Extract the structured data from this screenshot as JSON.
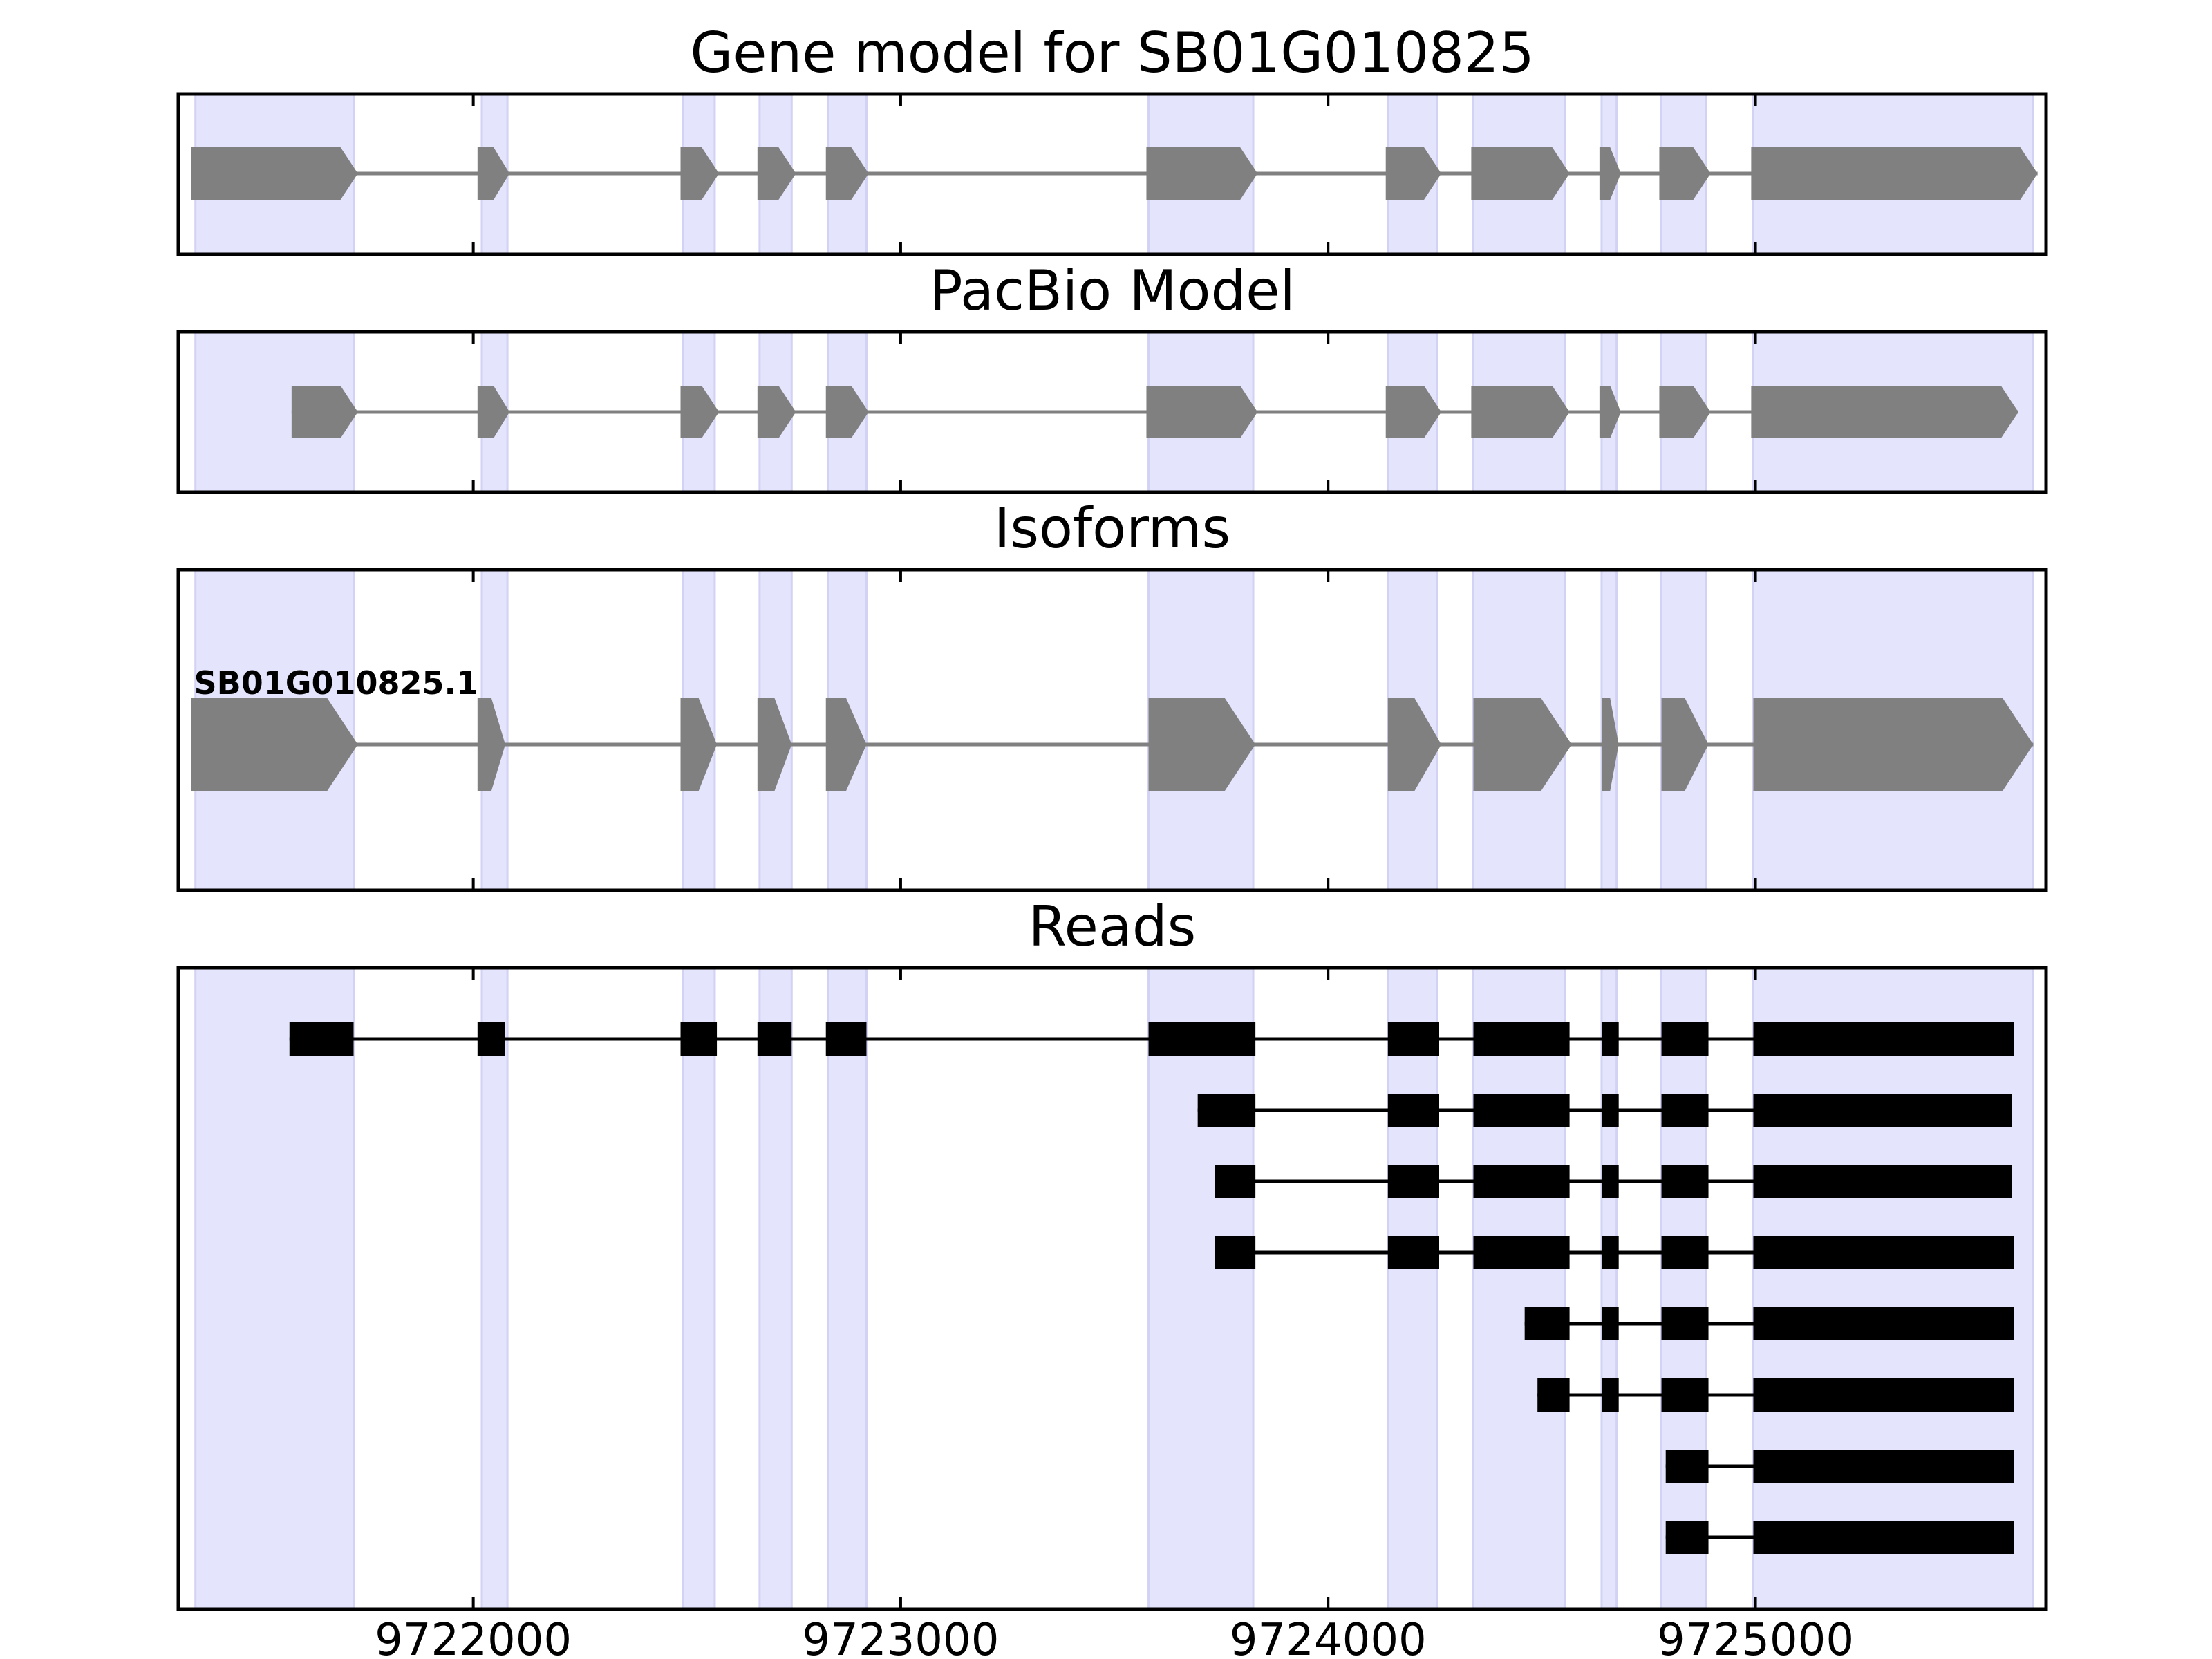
{
  "chart_data": {
    "type": "gene_model",
    "x_axis": {
      "range": [
        9721310,
        9725680
      ],
      "ticks": [
        9722000,
        9723000,
        9724000,
        9725000
      ],
      "tick_labels": [
        "9722000",
        "9723000",
        "9724000",
        "9725000"
      ]
    },
    "exon_regions": [
      [
        9721350,
        9721720
      ],
      [
        9722020,
        9722080
      ],
      [
        9722490,
        9722565
      ],
      [
        9722670,
        9722745
      ],
      [
        9722830,
        9722920
      ],
      [
        9723580,
        9723825
      ],
      [
        9724140,
        9724255
      ],
      [
        9724340,
        9724555
      ],
      [
        9724640,
        9724675
      ],
      [
        9724780,
        9724885
      ],
      [
        9724995,
        9725650
      ]
    ],
    "panels": [
      {
        "title": "Gene model for SB01G010825",
        "style": "arrow",
        "tracks": [
          {
            "label": "",
            "exons": [
              [
                9721340,
                9721730
              ],
              [
                9722010,
                9722085
              ],
              [
                9722485,
                9722575
              ],
              [
                9722665,
                9722755
              ],
              [
                9722825,
                9722925
              ],
              [
                9723575,
                9723835
              ],
              [
                9724135,
                9724265
              ],
              [
                9724335,
                9724565
              ],
              [
                9724635,
                9724685
              ],
              [
                9724775,
                9724895
              ],
              [
                9724990,
                9725660
              ]
            ]
          }
        ]
      },
      {
        "title": "PacBio Model",
        "style": "arrow",
        "tracks": [
          {
            "label": "",
            "exons": [
              [
                9721575,
                9721730
              ],
              [
                9722010,
                9722085
              ],
              [
                9722485,
                9722575
              ],
              [
                9722665,
                9722755
              ],
              [
                9722825,
                9722925
              ],
              [
                9723575,
                9723835
              ],
              [
                9724135,
                9724265
              ],
              [
                9724335,
                9724565
              ],
              [
                9724635,
                9724685
              ],
              [
                9724775,
                9724895
              ],
              [
                9724990,
                9725615
              ]
            ]
          }
        ]
      },
      {
        "title": "Isoforms",
        "style": "arrow",
        "tracks": [
          {
            "label": "SB01G010825.1",
            "exons": [
              [
                9721340,
                9721730
              ],
              [
                9722010,
                9722075
              ],
              [
                9722485,
                9722570
              ],
              [
                9722665,
                9722745
              ],
              [
                9722825,
                9722920
              ],
              [
                9723580,
                9723830
              ],
              [
                9724140,
                9724265
              ],
              [
                9724340,
                9724570
              ],
              [
                9724640,
                9724680
              ],
              [
                9724780,
                9724890
              ],
              [
                9724995,
                9725650
              ]
            ]
          }
        ]
      },
      {
        "title": "Reads",
        "style": "block",
        "tracks": [
          {
            "label": "",
            "exons": [
              [
                9721570,
                9721720
              ],
              [
                9722010,
                9722075
              ],
              [
                9722485,
                9722570
              ],
              [
                9722665,
                9722745
              ],
              [
                9722825,
                9722920
              ],
              [
                9723580,
                9723830
              ],
              [
                9724140,
                9724260
              ],
              [
                9724340,
                9724565
              ],
              [
                9724640,
                9724680
              ],
              [
                9724780,
                9724890
              ],
              [
                9724995,
                9725605
              ]
            ]
          },
          {
            "label": "",
            "exons": [
              [
                9723695,
                9723830
              ],
              [
                9724140,
                9724260
              ],
              [
                9724340,
                9724565
              ],
              [
                9724640,
                9724680
              ],
              [
                9724780,
                9724890
              ],
              [
                9724995,
                9725600
              ]
            ]
          },
          {
            "label": "",
            "exons": [
              [
                9723735,
                9723830
              ],
              [
                9724140,
                9724260
              ],
              [
                9724340,
                9724565
              ],
              [
                9724640,
                9724680
              ],
              [
                9724780,
                9724890
              ],
              [
                9724995,
                9725600
              ]
            ]
          },
          {
            "label": "",
            "exons": [
              [
                9723735,
                9723830
              ],
              [
                9724140,
                9724260
              ],
              [
                9724340,
                9724565
              ],
              [
                9724640,
                9724680
              ],
              [
                9724780,
                9724890
              ],
              [
                9724995,
                9725605
              ]
            ]
          },
          {
            "label": "",
            "exons": [
              [
                9724460,
                9724565
              ],
              [
                9724640,
                9724680
              ],
              [
                9724780,
                9724890
              ],
              [
                9724995,
                9725605
              ]
            ]
          },
          {
            "label": "",
            "exons": [
              [
                9724490,
                9724565
              ],
              [
                9724640,
                9724680
              ],
              [
                9724780,
                9724890
              ],
              [
                9724995,
                9725605
              ]
            ]
          },
          {
            "label": "",
            "exons": [
              [
                9724790,
                9724890
              ],
              [
                9724995,
                9725605
              ]
            ]
          },
          {
            "label": "",
            "exons": [
              [
                9724790,
                9724890
              ],
              [
                9724995,
                9725605
              ]
            ]
          }
        ]
      }
    ],
    "colors": {
      "highlight": "#e4e4fc",
      "arrow_exon": "#808080",
      "read_exon": "#000000"
    }
  }
}
